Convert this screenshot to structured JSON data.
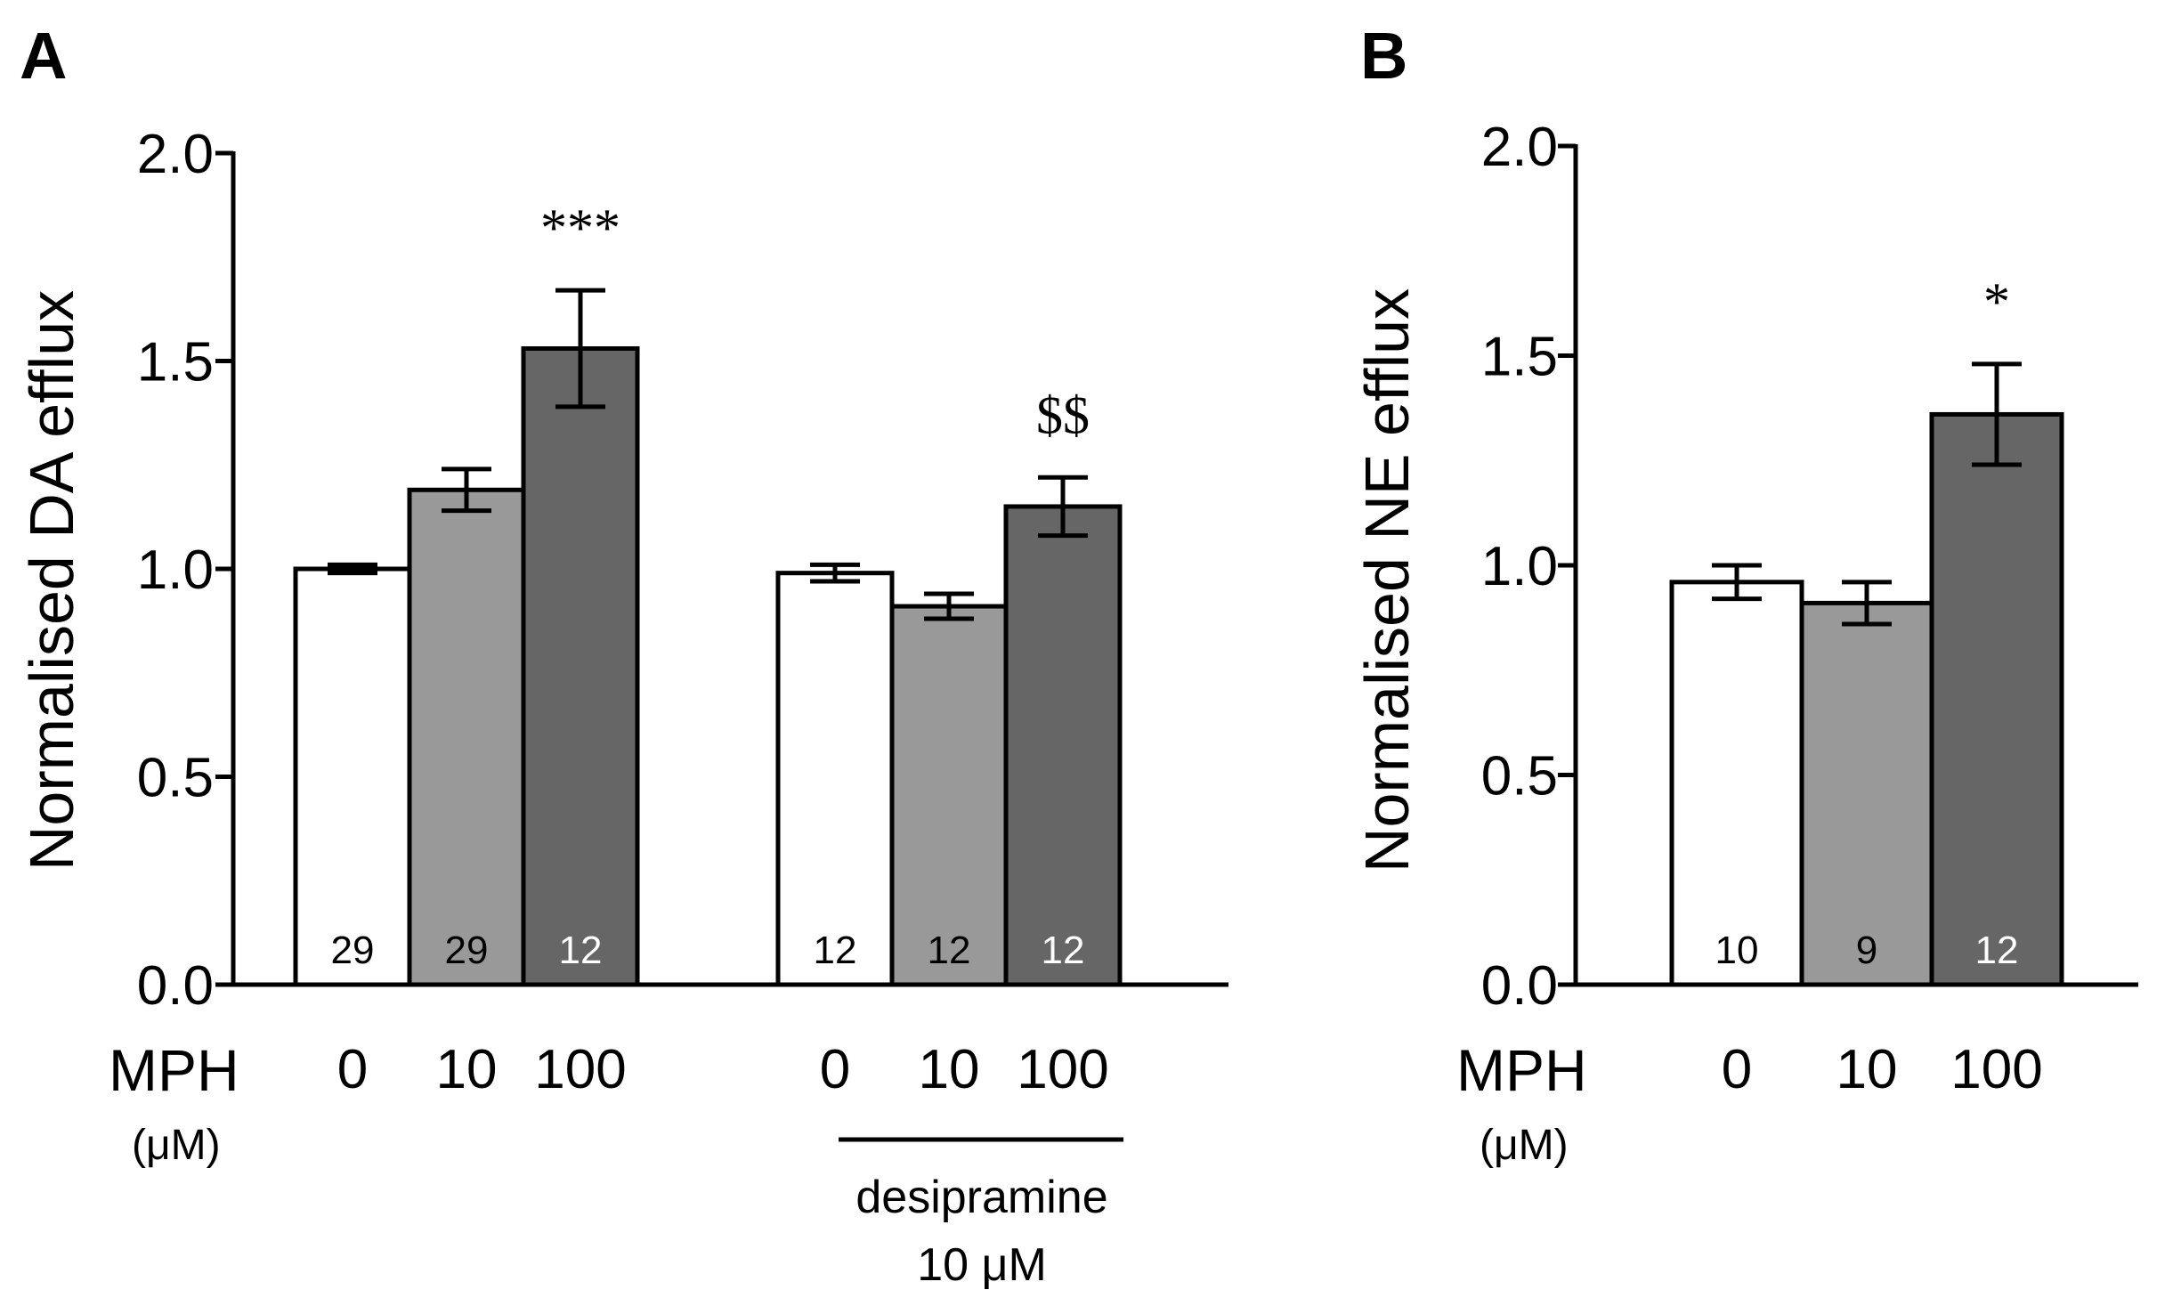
{
  "chart_data": [
    {
      "panel_label": "A",
      "type": "bar",
      "ylabel": "Normalised DA efflux",
      "ylim": [
        0,
        2.0
      ],
      "yticks": [
        "0.0",
        "0.5",
        "1.0",
        "1.5",
        "2.0"
      ],
      "x_row_label": "MPH",
      "x_row_unit": "(μM)",
      "groups": [
        {
          "label": "",
          "bars": [
            {
              "category": "0",
              "value": 1.0,
              "error": 0.01,
              "n": "29",
              "fill": "#ffffff",
              "n_color": "#000000",
              "annotation": ""
            },
            {
              "category": "10",
              "value": 1.19,
              "error": 0.05,
              "n": "29",
              "fill": "#999999",
              "n_color": "#000000",
              "annotation": ""
            },
            {
              "category": "100",
              "value": 1.53,
              "error": 0.14,
              "n": "12",
              "fill": "#666666",
              "n_color": "#ffffff",
              "annotation": "***"
            }
          ]
        },
        {
          "label_line1": "desipramine",
          "label_line2": "10 μM",
          "bars": [
            {
              "category": "0",
              "value": 0.99,
              "error": 0.02,
              "n": "12",
              "fill": "#ffffff",
              "n_color": "#000000",
              "annotation": ""
            },
            {
              "category": "10",
              "value": 0.91,
              "error": 0.03,
              "n": "12",
              "fill": "#999999",
              "n_color": "#000000",
              "annotation": ""
            },
            {
              "category": "100",
              "value": 1.15,
              "error": 0.07,
              "n": "12",
              "fill": "#666666",
              "n_color": "#ffffff",
              "annotation": "$$"
            }
          ]
        }
      ]
    },
    {
      "panel_label": "B",
      "type": "bar",
      "ylabel": "Normalised NE efflux",
      "ylim": [
        0,
        2.0
      ],
      "yticks": [
        "0.0",
        "0.5",
        "1.0",
        "1.5",
        "2.0"
      ],
      "x_row_label": "MPH",
      "x_row_unit": "(μM)",
      "groups": [
        {
          "label": "",
          "bars": [
            {
              "category": "0",
              "value": 0.96,
              "error": 0.04,
              "n": "10",
              "fill": "#ffffff",
              "n_color": "#000000",
              "annotation": ""
            },
            {
              "category": "10",
              "value": 0.91,
              "error": 0.05,
              "n": "9",
              "fill": "#999999",
              "n_color": "#000000",
              "annotation": ""
            },
            {
              "category": "100",
              "value": 1.36,
              "error": 0.12,
              "n": "12",
              "fill": "#666666",
              "n_color": "#ffffff",
              "annotation": "*"
            }
          ]
        }
      ]
    }
  ]
}
